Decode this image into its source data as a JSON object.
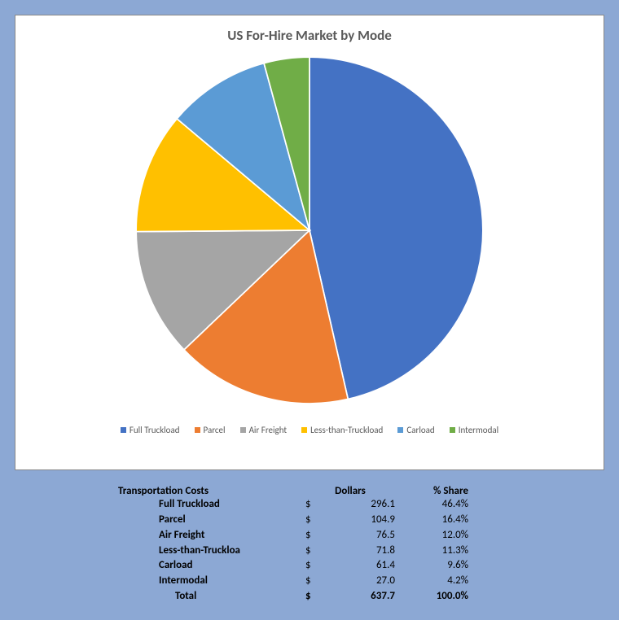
{
  "chart": {
    "type": "pie",
    "title": "US For-Hire Market by Mode",
    "title_fontsize": 17,
    "title_color": "#595959",
    "background_color": "#ffffff",
    "frame_background": "#8ca8d4",
    "start_angle_deg": 0,
    "direction": "clockwise",
    "series": [
      {
        "label": "Full Truckload",
        "value": 296.1,
        "share": 46.4,
        "color": "#4472c4"
      },
      {
        "label": "Parcel",
        "value": 104.9,
        "share": 16.4,
        "color": "#ed7d31"
      },
      {
        "label": "Air Freight",
        "value": 76.5,
        "share": 12.0,
        "color": "#a5a5a5"
      },
      {
        "label": "Less-than-Truckload",
        "value": 71.8,
        "share": 11.3,
        "color": "#ffc000"
      },
      {
        "label": "Carload",
        "value": 61.4,
        "share": 9.6,
        "color": "#5b9bd5"
      },
      {
        "label": "Intermodal",
        "value": 27.0,
        "share": 4.2,
        "color": "#70ad47"
      }
    ],
    "legend_fontsize": 11,
    "legend_color": "#595959"
  },
  "table": {
    "header": {
      "c1": "Transportation Costs",
      "c2": "Dollars",
      "c3": "% Share"
    },
    "rows": [
      {
        "label": "Full Truckload",
        "currency": "$",
        "dollars": "296.1",
        "share": "46.4%"
      },
      {
        "label": "Parcel",
        "currency": "$",
        "dollars": "104.9",
        "share": "16.4%"
      },
      {
        "label": "Air Freight",
        "currency": "$",
        "dollars": "76.5",
        "share": "12.0%"
      },
      {
        "label": "Less-than-Truckload",
        "label_display": "Less-than-Truckloa",
        "currency": "$",
        "dollars": "71.8",
        "share": "11.3%"
      },
      {
        "label": "Carload",
        "currency": "$",
        "dollars": "61.4",
        "share": "9.6%"
      },
      {
        "label": "Intermodal",
        "currency": "$",
        "dollars": "27.0",
        "share": "4.2%"
      }
    ],
    "total": {
      "label": "Total",
      "currency": "$",
      "dollars": "637.7",
      "share": "100.0%"
    },
    "fontsize": 13
  }
}
